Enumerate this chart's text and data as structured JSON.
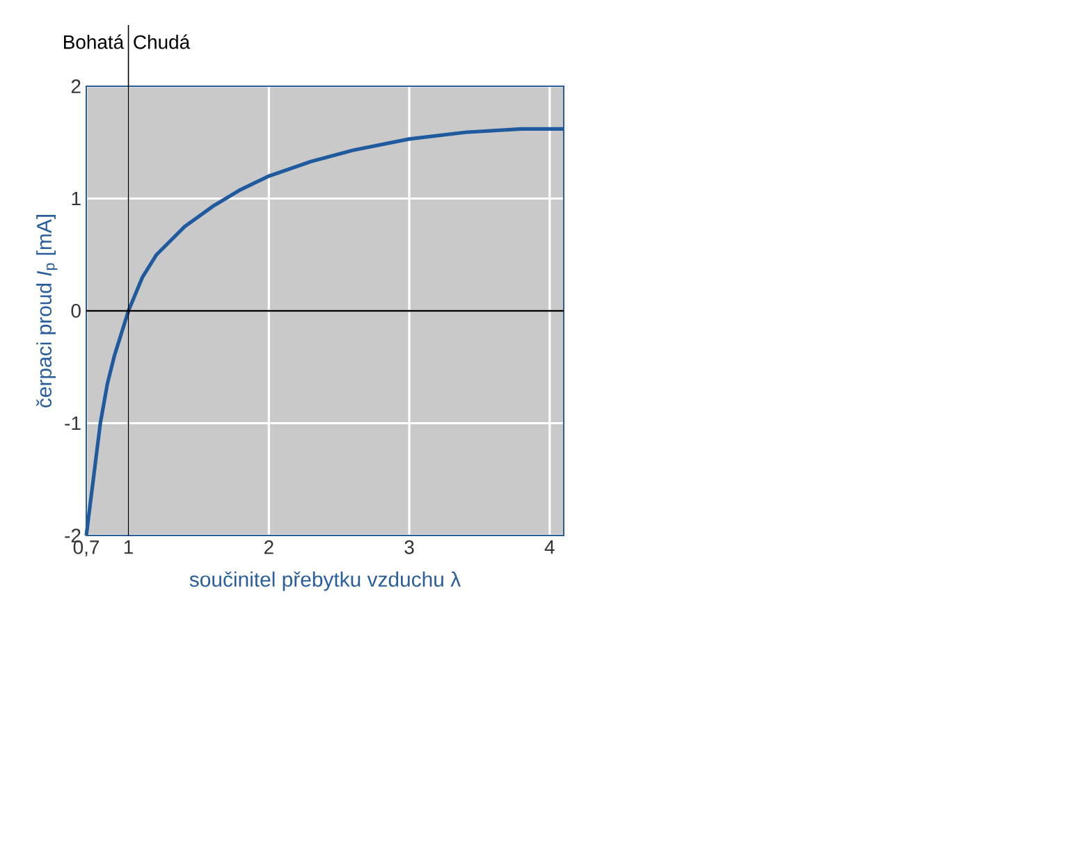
{
  "chart_data": {
    "type": "line",
    "xlabel": "součinitel přebytku vzduchu λ",
    "ylabel": "čerpaci proud *I*$_{p}$ [mA]",
    "annotations": [
      "Bohatá",
      "Chudá"
    ],
    "x": [
      0.7,
      0.75,
      0.8,
      0.85,
      0.9,
      1.0,
      1.1,
      1.2,
      1.4,
      1.6,
      1.8,
      2.0,
      2.3,
      2.6,
      3.0,
      3.4,
      3.8,
      4.1
    ],
    "series": [
      {
        "color": "#1f5a9e",
        "values": [
          -2,
          -1.5,
          -1.0,
          -0.65,
          -0.4,
          0,
          0.3,
          0.5,
          0.75,
          0.93,
          1.08,
          1.2,
          1.33,
          1.43,
          1.53,
          1.59,
          1.62,
          1.62
        ]
      }
    ],
    "xlim": [
      0.7,
      4.1
    ],
    "ylim": [
      -2,
      2
    ],
    "xticks": [
      {
        "value": 0.7,
        "label": "0,7"
      },
      1,
      2,
      3,
      4
    ],
    "yticks": [
      -2,
      -1,
      0,
      1,
      2
    ],
    "ref_lines": [
      {
        "axis": "y",
        "value": 0,
        "color": "#000000"
      },
      {
        "axis": "x",
        "value": 1,
        "color": "#000000"
      }
    ],
    "grid": true,
    "marker": "none",
    "line_style": "solid"
  }
}
